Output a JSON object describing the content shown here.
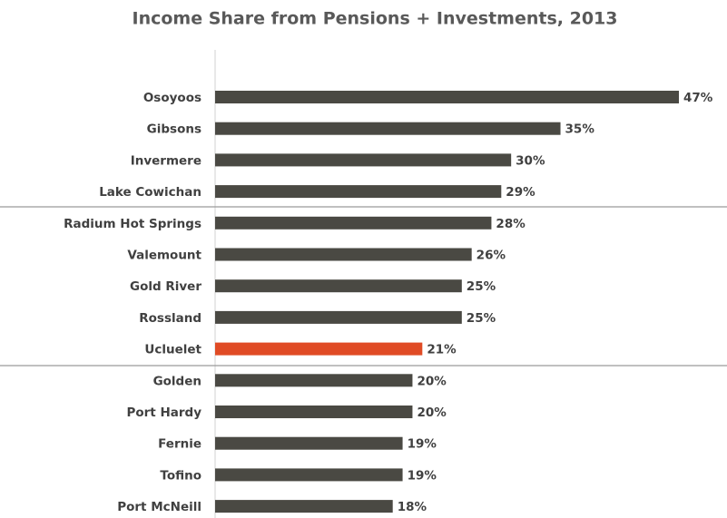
{
  "chart_data": {
    "type": "bar",
    "orientation": "horizontal",
    "title": "Income Share from Pensions + Investments, 2013",
    "categories": [
      "Osoyoos",
      "Gibsons",
      "Invermere",
      "Lake Cowichan",
      "Radium Hot Springs",
      "Valemount",
      "Gold River",
      "Rossland",
      "Ucluelet",
      "Golden",
      "Port Hardy",
      "Fernie",
      "Tofino",
      "Port McNeill"
    ],
    "values": [
      47,
      35,
      30,
      29,
      28,
      26,
      25,
      25,
      21,
      20,
      20,
      19,
      19,
      18
    ],
    "value_labels": [
      "47%",
      "35%",
      "30%",
      "29%",
      "28%",
      "26%",
      "25%",
      "25%",
      "21%",
      "20%",
      "20%",
      "19%",
      "19%",
      "18%"
    ],
    "colors": [
      "#4a4943",
      "#4a4943",
      "#4a4943",
      "#4a4943",
      "#4a4943",
      "#4a4943",
      "#4a4943",
      "#4a4943",
      "#e04b25",
      "#4a4943",
      "#4a4943",
      "#4a4943",
      "#4a4943",
      "#4a4943"
    ]
  }
}
